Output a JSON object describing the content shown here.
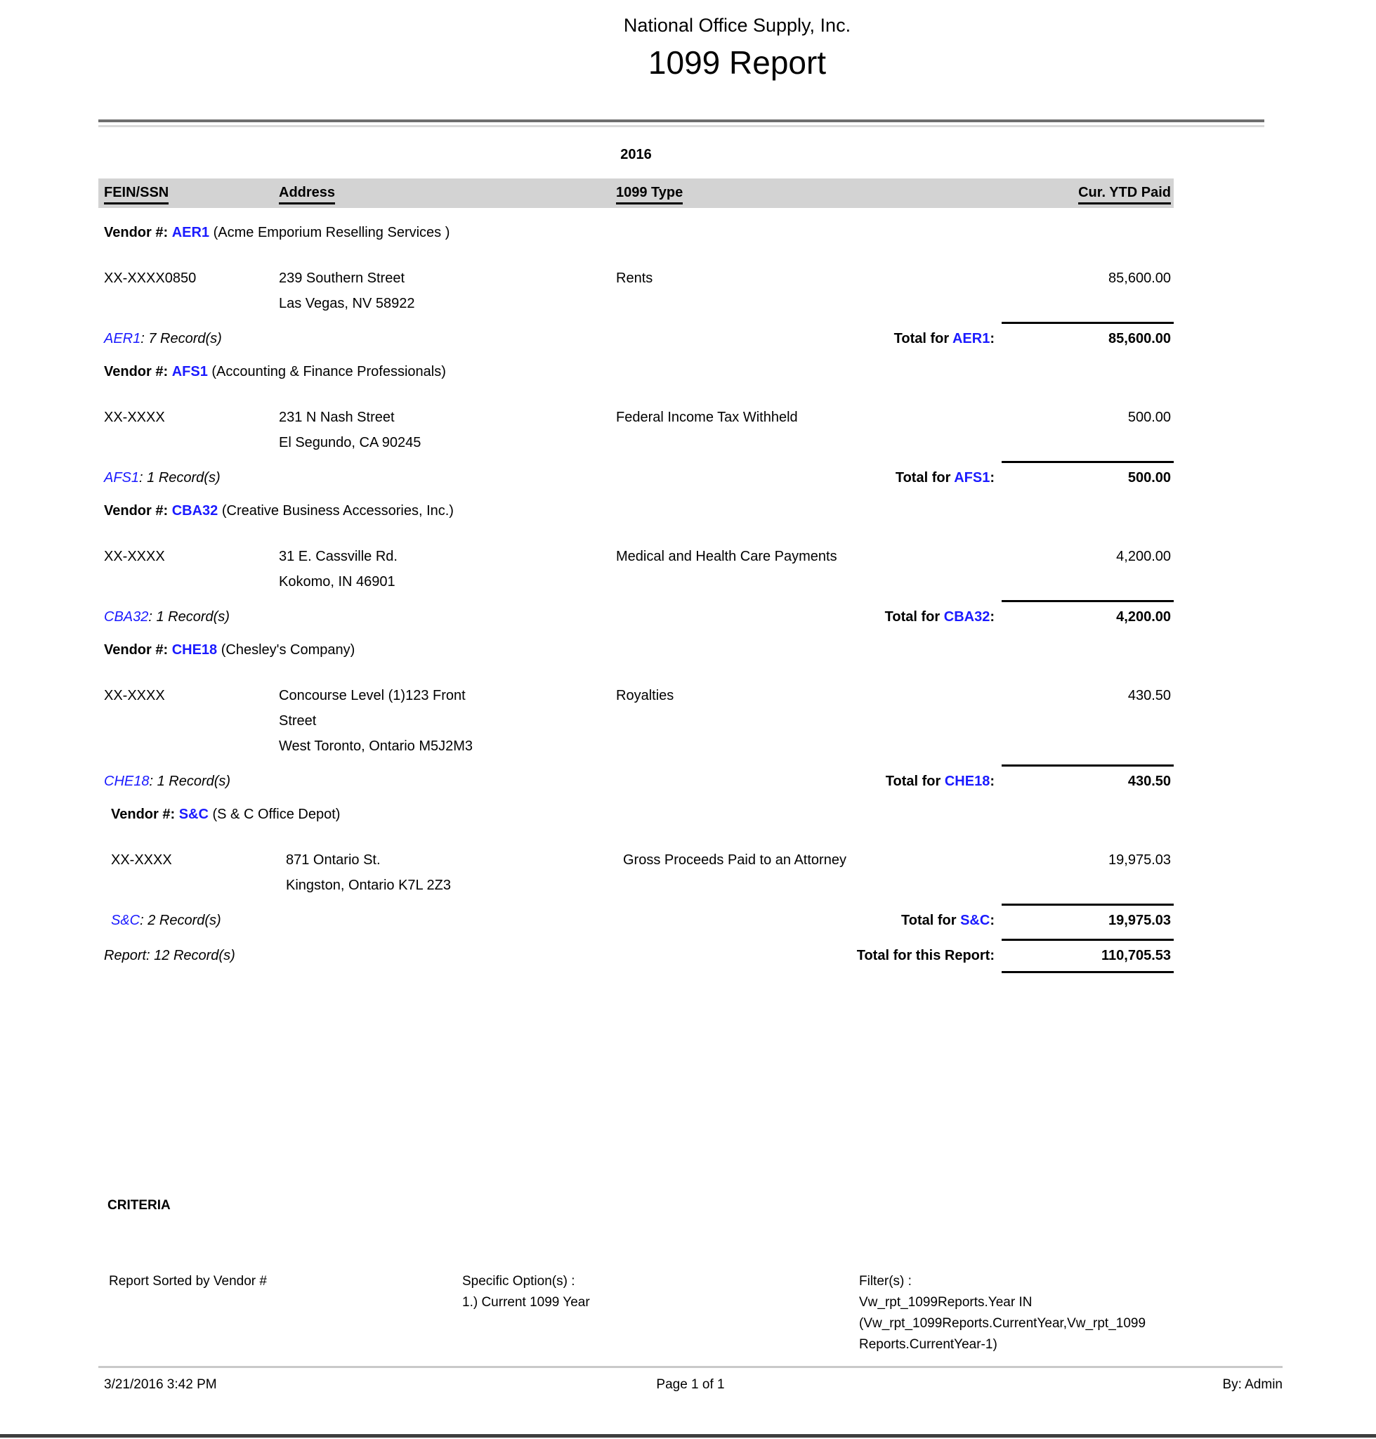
{
  "report": {
    "company": "National Office Supply, Inc.",
    "title": "1099 Report",
    "year": "2016",
    "columns": [
      "FEIN/SSN",
      "Address",
      "1099 Type",
      "Cur. YTD Paid"
    ],
    "labels": {
      "vendor_prefix": "Vendor #:",
      "total_for": "Total for",
      "colon": ":"
    },
    "vendors": [
      {
        "code": "AER1",
        "name": "(Acme Emporium Reselling Services )",
        "fein": "XX-XXXX0850",
        "address_lines": [
          "239 Southern Street",
          "Las Vegas, NV 58922"
        ],
        "type": "Rents",
        "amount": "85,600.00",
        "records_suffix": ": 7 Record(s)",
        "total": "85,600.00"
      },
      {
        "code": "AFS1",
        "name": "(Accounting & Finance Professionals)",
        "fein": "XX-XXXX",
        "address_lines": [
          "231 N Nash Street",
          "El Segundo, CA 90245"
        ],
        "type": "Federal Income Tax Withheld",
        "amount": "500.00",
        "records_suffix": ": 1 Record(s)",
        "total": "500.00"
      },
      {
        "code": "CBA32",
        "name": "(Creative Business Accessories, Inc.)",
        "fein": "XX-XXXX",
        "address_lines": [
          "31 E. Cassville Rd.",
          "Kokomo, IN 46901"
        ],
        "type": "Medical and Health Care Payments",
        "amount": "4,200.00",
        "records_suffix": ": 1 Record(s)",
        "total": "4,200.00"
      },
      {
        "code": "CHE18",
        "name": "(Chesley's Company)",
        "fein": "XX-XXXX",
        "address_lines": [
          "Concourse Level (1)123 Front",
          "Street",
          "West Toronto, Ontario M5J2M3"
        ],
        "type": "Royalties",
        "amount": "430.50",
        "records_suffix": ": 1 Record(s)",
        "total": "430.50"
      },
      {
        "code": "S&C",
        "name": "(S & C Office Depot)",
        "fein": "XX-XXXX",
        "address_lines": [
          "871 Ontario St.",
          "Kingston, Ontario K7L 2Z3"
        ],
        "type": "Gross Proceeds Paid to an Attorney",
        "amount": "19,975.03",
        "records_suffix": ": 2 Record(s)",
        "total": "19,975.03"
      }
    ],
    "report_records": "Report: 12 Record(s)",
    "report_total_label": "Total for this Report:",
    "report_total": "110,705.53",
    "criteria": {
      "heading": "CRITERIA",
      "sorted_by": "Report Sorted by Vendor #",
      "specific_options_label": "Specific Option(s) :",
      "specific_option_1": "1.) Current 1099 Year",
      "filters_label": "Filter(s) :",
      "filter_line_1": "Vw_rpt_1099Reports.Year IN",
      "filter_line_2": "(Vw_rpt_1099Reports.CurrentYear,Vw_rpt_1099",
      "filter_line_3": "Reports.CurrentYear-1)"
    },
    "footer": {
      "datetime": "3/21/2016 3:42 PM",
      "page": "Page 1 of 1",
      "by": "By: Admin"
    }
  },
  "colors": {
    "accent_blue": "#1a1aff",
    "header_band": "#d3d3d3"
  }
}
